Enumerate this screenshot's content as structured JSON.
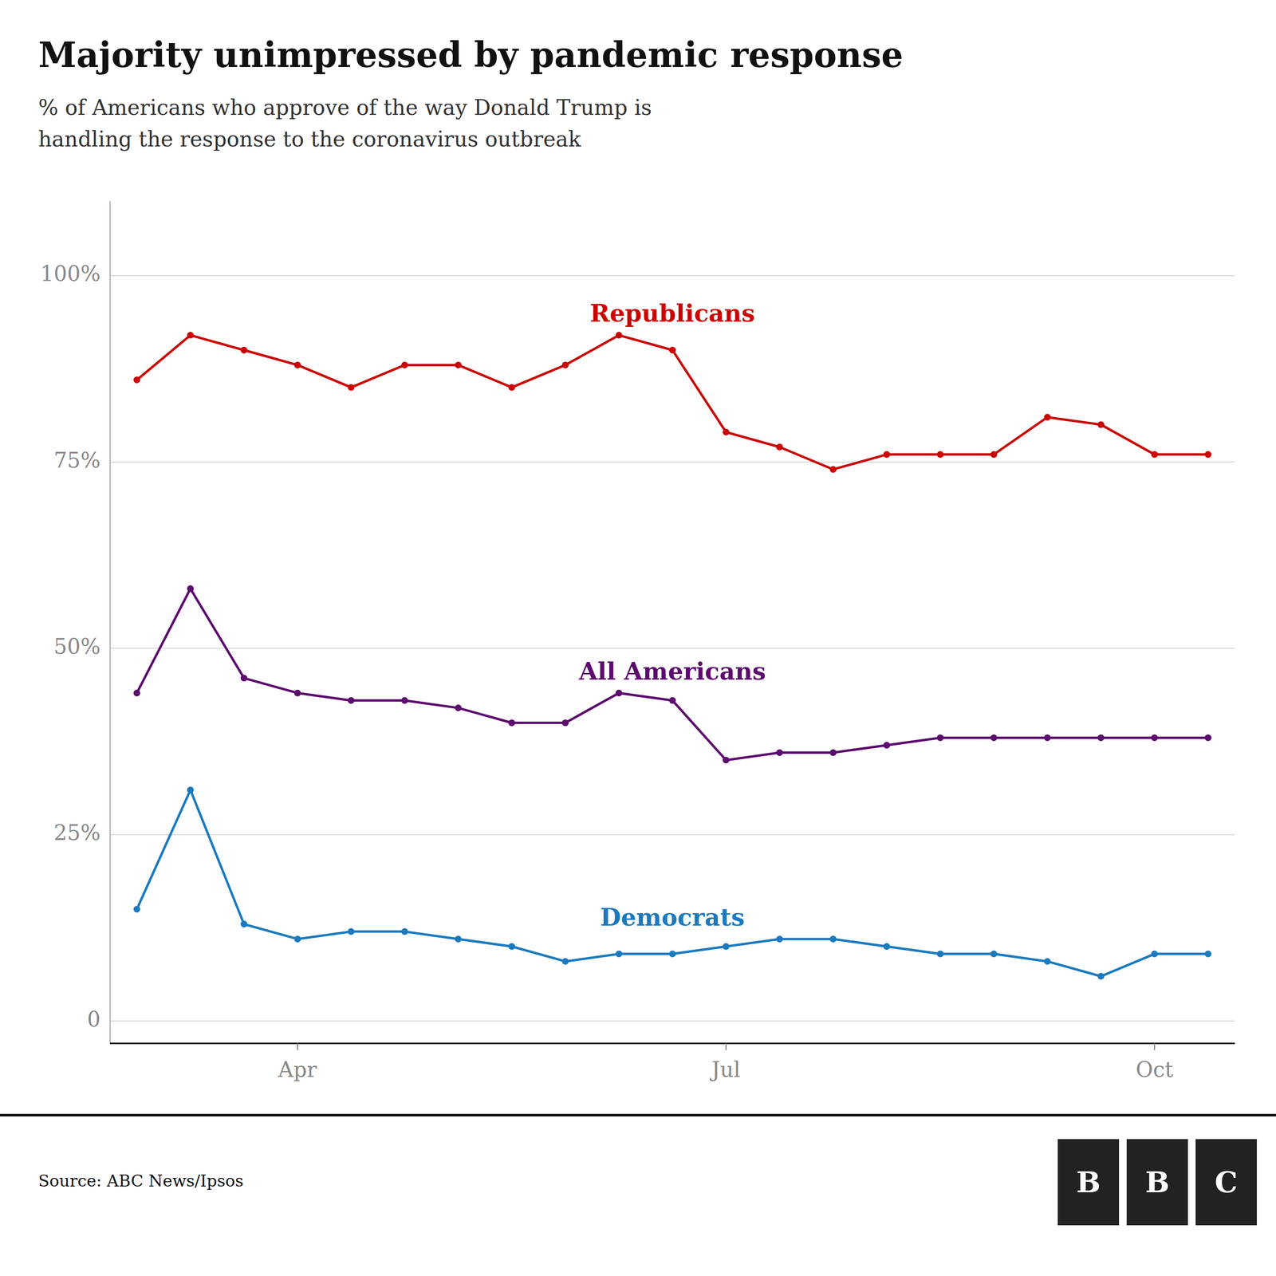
{
  "chart_data": {
    "type": "line",
    "title": "Majority unimpressed by pandemic response",
    "subtitle": "% of Americans who approve of the way Donald Trump is\nhandling the response to the coronavirus outbreak",
    "source": "Source: ABC News/Ipsos",
    "annotations": [
      "BBC"
    ],
    "x": [
      0,
      1,
      2,
      3,
      4,
      5,
      6,
      7,
      8,
      9,
      10,
      11,
      12,
      13,
      14,
      15,
      16,
      17,
      18,
      19,
      20
    ],
    "series": [
      {
        "name": "Republicans",
        "color": "#cc0000",
        "marker": "circle",
        "values": [
          86,
          92,
          90,
          88,
          85,
          88,
          88,
          85,
          88,
          92,
          90,
          79,
          77,
          74,
          76,
          76,
          76,
          81,
          80,
          76,
          76
        ]
      },
      {
        "name": "All Americans",
        "color": "#5c0a6e",
        "marker": "circle",
        "values": [
          44,
          58,
          46,
          44,
          43,
          43,
          42,
          40,
          40,
          44,
          43,
          35,
          36,
          36,
          37,
          38,
          38,
          38,
          38,
          38,
          38
        ]
      },
      {
        "name": "Democrats",
        "color": "#1a7abf",
        "marker": "circle",
        "values": [
          15,
          31,
          13,
          11,
          12,
          12,
          11,
          10,
          8,
          9,
          9,
          10,
          11,
          11,
          10,
          9,
          9,
          8,
          6,
          9,
          9
        ]
      }
    ],
    "xlim": [
      -0.5,
      20.5
    ],
    "xticks": [
      {
        "value": 3,
        "label": "Apr"
      },
      {
        "value": 11,
        "label": "Jul"
      },
      {
        "value": 19,
        "label": "Oct"
      }
    ],
    "ylim": [
      -3,
      110
    ],
    "yticks": [
      0,
      {
        "value": 25,
        "label": "25%"
      },
      {
        "value": 50,
        "label": "50%"
      },
      {
        "value": 75,
        "label": "75%"
      },
      {
        "value": 100,
        "label": "100%"
      }
    ],
    "grid": true
  }
}
